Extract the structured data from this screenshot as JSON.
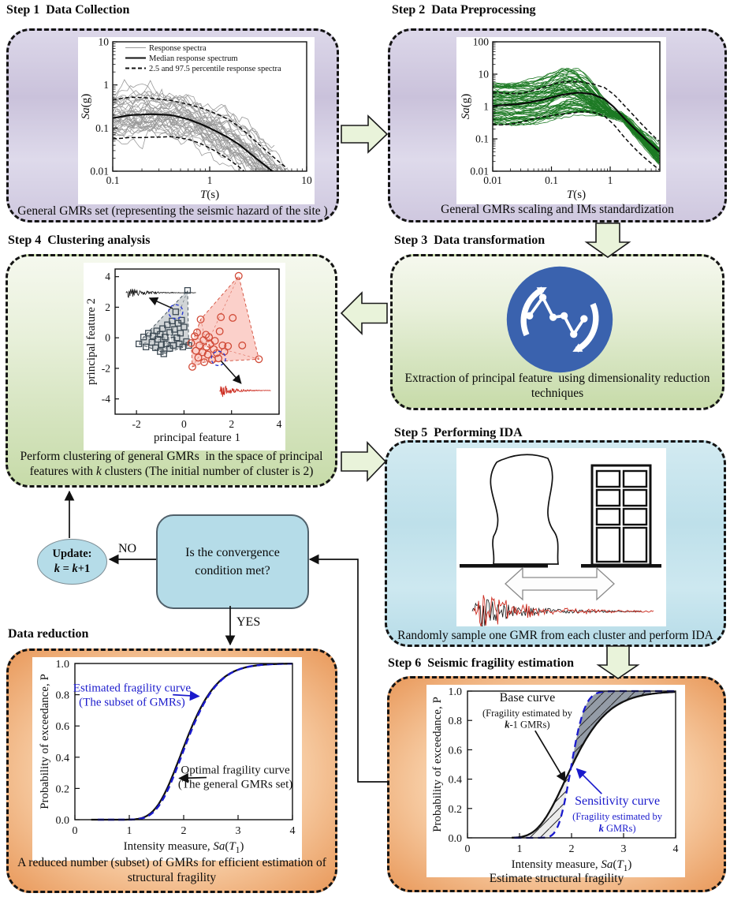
{
  "steps": {
    "s1": {
      "title": "Step 1  Data Collection",
      "caption": "General GMRs set (representing the seismic hazard of the site )"
    },
    "s2": {
      "title": "Step 2  Data Preprocessing",
      "caption": "General GMRs scaling and IMs standardization"
    },
    "s3": {
      "title": "Step 3  Data transformation",
      "caption_line1": "Extraction of principal feature  using dimensionality reduction",
      "caption_line2": "techniques"
    },
    "s4": {
      "title": "Step 4  Clustering analysis",
      "caption_line1": "Perform clustering of general GMRs  in the space of principal",
      "caption_line2_pre": "features with ",
      "caption_k": "k",
      "caption_line2_post": " clusters (The initial number of cluster is 2)"
    },
    "s5": {
      "title": "Step 5  Performing IDA",
      "caption": "Randomly sample one GMR from each cluster and perform IDA"
    },
    "s6": {
      "title": "Step 6  Seismic fragility estimation",
      "caption": "Estimate structural fragility"
    },
    "dr": {
      "title": "Data reduction",
      "caption_line1": "A reduced number (subset) of GMRs for efficient estimation of",
      "caption_line2": "structural fragility"
    }
  },
  "flow": {
    "decision_line1": "Is the convergence",
    "decision_line2": "condition met?",
    "no_label": "NO",
    "yes_label": "YES",
    "update_title": "Update:",
    "update_k": "k",
    "update_eq": " = ",
    "update_plus": "+1"
  },
  "colors": {
    "arrow_fill": "#e9f3da",
    "box_fill": "#b5dce8",
    "icon_blue": "#3a62ae",
    "spectra_gray": "#9a9a9a",
    "spectra_green": "#1d7a24",
    "fragility_blue": "#1a1acc",
    "cluster_gray": "#3d4a54",
    "cluster_red": "#d14b38"
  },
  "chart_data": [
    {
      "id": "chart-step1",
      "type": "spectra",
      "x_range": [
        0.1,
        10
      ],
      "y_range": [
        0.01,
        10
      ],
      "x_ticks": [
        {
          "v": 0.1,
          "l": "0.1"
        },
        {
          "v": 1,
          "l": "1"
        },
        {
          "v": 10,
          "l": "10"
        }
      ],
      "y_ticks": [
        {
          "v": 0.01,
          "l": "0.01"
        },
        {
          "v": 0.1,
          "l": "0.1"
        },
        {
          "v": 1,
          "l": "1"
        },
        {
          "v": 10,
          "l": "10"
        }
      ],
      "xlabel": [
        {
          "t": "T",
          "i": 1
        },
        {
          "t": "(s)"
        }
      ],
      "ylabel": [
        {
          "t": "Sa",
          "i": 1
        },
        {
          "t": "(g)"
        }
      ],
      "legend": [
        {
          "label": "Response spectra",
          "color": "#9a9a9a",
          "w": 1
        },
        {
          "label": "Median response spectrum",
          "color": "#111111",
          "w": 2
        },
        {
          "label": "2.5 and 97.5 percentile response spectra",
          "color": "#111111",
          "w": 2,
          "dash": "5,3"
        }
      ],
      "median": [
        [
          0.1,
          0.17
        ],
        [
          0.15,
          0.2
        ],
        [
          0.25,
          0.21
        ],
        [
          0.4,
          0.2
        ],
        [
          0.6,
          0.16
        ],
        [
          0.8,
          0.125
        ],
        [
          1,
          0.1
        ],
        [
          1.5,
          0.063
        ],
        [
          2,
          0.042
        ],
        [
          3,
          0.02
        ],
        [
          4,
          0.012
        ],
        [
          5,
          0.008
        ],
        [
          6.5,
          0.005
        ]
      ],
      "upper_mult": 2.4,
      "lower_mult": 0.32,
      "n_traces": 38,
      "trace_color": "#9a9a9a",
      "seed": 11
    },
    {
      "id": "chart-step2",
      "type": "spectra2",
      "x_range": [
        0.01,
        7
      ],
      "y_range": [
        0.01,
        100
      ],
      "x_ticks": [
        {
          "v": 0.01,
          "l": "0.01"
        },
        {
          "v": 0.1,
          "l": "0.1"
        },
        {
          "v": 1,
          "l": "1"
        }
      ],
      "y_ticks": [
        {
          "v": 0.01,
          "l": "0.01"
        },
        {
          "v": 0.1,
          "l": "0.1"
        },
        {
          "v": 1,
          "l": "1"
        },
        {
          "v": 10,
          "l": "10"
        },
        {
          "v": 100,
          "l": "100"
        }
      ],
      "xlabel": [
        {
          "t": "T",
          "i": 1
        },
        {
          "t": "(s)"
        }
      ],
      "ylabel": [
        {
          "t": "Sa",
          "i": 1
        },
        {
          "t": "(g)"
        }
      ],
      "median": [
        [
          0.01,
          1.05
        ],
        [
          0.03,
          1.2
        ],
        [
          0.07,
          1.6
        ],
        [
          0.15,
          2.3
        ],
        [
          0.3,
          2.7
        ],
        [
          0.5,
          2.4
        ],
        [
          0.8,
          1.7
        ],
        [
          1.2,
          0.9
        ],
        [
          1.6,
          0.5
        ],
        [
          2,
          0.33
        ],
        [
          3,
          0.16
        ],
        [
          4.5,
          0.08
        ],
        [
          6.8,
          0.04
        ]
      ],
      "upper_mult": 2.3,
      "lower_mult": 0.27,
      "n_traces": 70,
      "trace_color": "#1d7a24",
      "seed": 5
    },
    {
      "id": "chart-step4",
      "type": "scatter",
      "x_range": [
        -2.9,
        4
      ],
      "y_range": [
        -5,
        4.5
      ],
      "x_ticks": [
        {
          "v": -2,
          "l": "-2"
        },
        {
          "v": 0,
          "l": "0"
        },
        {
          "v": 2,
          "l": "2"
        },
        {
          "v": 4,
          "l": "4"
        }
      ],
      "y_ticks": [
        {
          "v": -4,
          "l": "-4"
        },
        {
          "v": -2,
          "l": "-2"
        },
        {
          "v": 0,
          "l": "0"
        },
        {
          "v": 2,
          "l": "2"
        },
        {
          "v": 4,
          "l": "4"
        }
      ],
      "xlabel": [
        {
          "t": "principal feature 1"
        }
      ],
      "ylabel": [
        {
          "t": "principal feature 2"
        }
      ],
      "clusters": [
        {
          "name": "cluster-1",
          "marker": "square",
          "stroke": "#3d4a54",
          "fill": "rgba(145,155,160,0.42)",
          "label": "1",
          "centroid": [
            -0.6,
            0.0
          ],
          "hull": [
            [
              -1.9,
              -0.4
            ],
            [
              -1.0,
              -0.9
            ],
            [
              -0.85,
              -1.05
            ],
            [
              0.2,
              -0.5
            ],
            [
              0.15,
              3.1
            ],
            [
              -1.7,
              0.05
            ]
          ],
          "points": [
            [
              -1.9,
              -0.4
            ],
            [
              -1.7,
              0.05
            ],
            [
              -1.6,
              -0.6
            ],
            [
              -1.5,
              0.3
            ],
            [
              -1.35,
              -0.3
            ],
            [
              -1.3,
              0.12
            ],
            [
              -1.2,
              -0.65
            ],
            [
              -1.15,
              0.45
            ],
            [
              -1.1,
              -0.1
            ],
            [
              -1.0,
              -0.9
            ],
            [
              -1.0,
              0.22
            ],
            [
              -0.95,
              -0.45
            ],
            [
              -0.9,
              0.6
            ],
            [
              -0.85,
              -1.05
            ],
            [
              -0.8,
              0.05
            ],
            [
              -0.75,
              -0.4
            ],
            [
              -0.7,
              0.85
            ],
            [
              -0.6,
              -0.7
            ],
            [
              -0.6,
              0.35
            ],
            [
              -0.5,
              -0.15
            ],
            [
              -0.5,
              1.1
            ],
            [
              -0.45,
              -0.5
            ],
            [
              -0.4,
              0.55
            ],
            [
              -0.35,
              1.7
            ],
            [
              -0.3,
              0.0
            ],
            [
              -0.25,
              0.95
            ],
            [
              -0.2,
              -0.4
            ],
            [
              -0.15,
              0.3
            ],
            [
              -0.1,
              1.15
            ],
            [
              -0.05,
              -0.6
            ],
            [
              0.0,
              0.7
            ],
            [
              0.1,
              -0.25
            ],
            [
              0.15,
              3.1
            ],
            [
              0.2,
              -0.5
            ]
          ]
        },
        {
          "name": "cluster-2",
          "marker": "circle",
          "stroke": "#d14b38",
          "fill": "rgba(247,150,138,0.45)",
          "label": "2",
          "centroid": [
            0.95,
            -0.45
          ],
          "hull": [
            [
              0.35,
              -1.9
            ],
            [
              0.85,
              -1.6
            ],
            [
              3.15,
              -1.4
            ],
            [
              2.3,
              4.05
            ],
            [
              0.7,
              1.2
            ],
            [
              0.45,
              0.1
            ],
            [
              0.3,
              -0.35
            ]
          ],
          "points": [
            [
              0.3,
              -0.35
            ],
            [
              0.35,
              -1.9
            ],
            [
              0.45,
              0.1
            ],
            [
              0.5,
              -0.85
            ],
            [
              0.55,
              0.35
            ],
            [
              0.6,
              -1.3
            ],
            [
              0.65,
              -0.5
            ],
            [
              0.7,
              1.2
            ],
            [
              0.78,
              -0.95
            ],
            [
              0.82,
              -0.15
            ],
            [
              0.85,
              -1.6
            ],
            [
              0.92,
              0.2
            ],
            [
              0.95,
              -0.6
            ],
            [
              1.0,
              -1.1
            ],
            [
              1.05,
              0.05
            ],
            [
              1.1,
              -0.42
            ],
            [
              1.18,
              -1.45
            ],
            [
              1.25,
              -0.75
            ],
            [
              1.3,
              -0.2
            ],
            [
              1.38,
              -1.0
            ],
            [
              1.45,
              -1.35
            ],
            [
              1.5,
              0.42
            ],
            [
              1.55,
              1.35
            ],
            [
              1.62,
              -0.5
            ],
            [
              1.7,
              -0.9
            ],
            [
              1.85,
              -0.55
            ],
            [
              2.05,
              1.3
            ],
            [
              2.3,
              4.05
            ],
            [
              2.45,
              -0.5
            ],
            [
              3.15,
              -1.4
            ]
          ]
        }
      ],
      "waveforms": [
        {
          "x": -2.45,
          "y": 2.95,
          "len": 2.95,
          "amp": 0.5,
          "color": "#111111",
          "seed": 21
        },
        {
          "x": 1.5,
          "y": -3.45,
          "len": 2.15,
          "amp": 0.6,
          "color": "#cc2a1e",
          "seed": 33
        }
      ],
      "highlights": [
        {
          "x": -0.35,
          "y": 1.7
        },
        {
          "x": 1.45,
          "y": -1.35
        }
      ],
      "arrows": [
        {
          "x1": -0.48,
          "y1": 1.92,
          "x2": -1.45,
          "y2": 2.6
        },
        {
          "x1": 1.56,
          "y1": -1.52,
          "x2": 2.4,
          "y2": -2.98
        }
      ]
    },
    {
      "id": "chart-dr",
      "type": "fragility",
      "x_range": [
        0,
        4
      ],
      "y_range": [
        0,
        1
      ],
      "x_ticks": [
        {
          "v": 0,
          "l": "0"
        },
        {
          "v": 1,
          "l": "1"
        },
        {
          "v": 2,
          "l": "2"
        },
        {
          "v": 3,
          "l": "3"
        },
        {
          "v": 4,
          "l": "4"
        }
      ],
      "y_ticks": [
        {
          "v": 0,
          "l": "0.0"
        },
        {
          "v": 0.2,
          "l": "0.2"
        },
        {
          "v": 0.4,
          "l": "0.4"
        },
        {
          "v": 0.6,
          "l": "0.6"
        },
        {
          "v": 0.8,
          "l": "0.8"
        },
        {
          "v": 1,
          "l": "1.0"
        }
      ],
      "xlabel": [
        {
          "t": "Intensity measure, "
        },
        {
          "t": "Sa",
          "i": 1
        },
        {
          "t": "("
        },
        {
          "t": "T",
          "i": 1
        },
        {
          "t": "1",
          "sub": 1
        },
        {
          "t": ")"
        }
      ],
      "ylabel": [
        {
          "t": "Probability of exceedance, P"
        }
      ],
      "curves": [
        {
          "name": "Optimal fragility curve (The general GMRs set)",
          "median": 2.04,
          "beta": 0.22,
          "color": "#111111",
          "width": 2.3,
          "x_start": 0.3
        },
        {
          "name": "Estimated fragility curve (The subset of GMRs)",
          "median": 2.06,
          "beta": 0.215,
          "color": "#1a1acc",
          "width": 2.5,
          "dash": "8,5",
          "x_start": 0.42
        }
      ],
      "annotations": [
        {
          "color": "#1a1acc",
          "x": 1.05,
          "y": 0.82,
          "lines": [
            {
              "size": 15,
              "parts": [
                {
                  "t": "Estimated fragility curve"
                }
              ]
            },
            {
              "size": 15,
              "parts": [
                {
                  "t": "(The subset of GMRs)"
                }
              ]
            }
          ],
          "arrow": {
            "x1": 1.8,
            "y1": 0.8,
            "x2": 2.28,
            "y2": 0.79
          }
        },
        {
          "color": "#111111",
          "x": 2.95,
          "y": 0.295,
          "lines": [
            {
              "size": 15,
              "parts": [
                {
                  "t": "Optimal fragility curve"
                }
              ]
            },
            {
              "size": 15,
              "parts": [
                {
                  "t": "(The general GMRs set)"
                }
              ]
            }
          ],
          "arrow": {
            "x1": 2.42,
            "y1": 0.27,
            "x2": 1.92,
            "y2": 0.265
          }
        }
      ]
    },
    {
      "id": "chart-step6",
      "type": "fragility",
      "x_range": [
        0,
        4
      ],
      "y_range": [
        0,
        1
      ],
      "x_ticks": [
        {
          "v": 0,
          "l": "0"
        },
        {
          "v": 1,
          "l": "1"
        },
        {
          "v": 2,
          "l": "2"
        },
        {
          "v": 3,
          "l": "3"
        },
        {
          "v": 4,
          "l": "4"
        }
      ],
      "y_ticks": [
        {
          "v": 0,
          "l": "0.0"
        },
        {
          "v": 0.2,
          "l": "0.2"
        },
        {
          "v": 0.4,
          "l": "0.4"
        },
        {
          "v": 0.6,
          "l": "0.6"
        },
        {
          "v": 0.8,
          "l": "0.8"
        },
        {
          "v": 1,
          "l": "1.0"
        }
      ],
      "xlabel": [
        {
          "t": "Intensity measure, "
        },
        {
          "t": "Sa",
          "i": 1
        },
        {
          "t": "("
        },
        {
          "t": "T",
          "i": 1
        },
        {
          "t": "1",
          "sub": 1
        },
        {
          "t": ")"
        }
      ],
      "ylabel": [
        {
          "t": "Probability of exceedance, P"
        }
      ],
      "band": {
        "hatch": true,
        "gray_above": true
      },
      "curves": [
        {
          "name": "Base curve (Fragility estimated by k-1 GMRs)",
          "median": 2.02,
          "beta": 0.27,
          "color": "#111111",
          "width": 2.3,
          "x_start": 0.85
        },
        {
          "name": "Sensitivity curve (Fragility estimated by k GMRs)",
          "median": 2.0,
          "beta": 0.1,
          "color": "#1a1acc",
          "width": 2.3,
          "dash": "9,6",
          "x_start": 0.9
        }
      ],
      "annotations": [
        {
          "color": "#111111",
          "x": 1.15,
          "y": 0.93,
          "lines": [
            {
              "size": 16,
              "parts": [
                {
                  "t": "Base curve"
                }
              ]
            },
            {
              "size": 12.5,
              "parts": [
                {
                  "t": "(Fragility estimated by"
                }
              ]
            },
            {
              "size": 12.5,
              "parts": [
                {
                  "t": "k",
                  "i": 1,
                  "b": 1
                },
                {
                  "t": "-1 GMRs)"
                }
              ]
            }
          ],
          "arrow": {
            "x1": 1.3,
            "y1": 0.73,
            "x2": 1.88,
            "y2": 0.385
          }
        },
        {
          "color": "#1a1acc",
          "x": 2.88,
          "y": 0.225,
          "lines": [
            {
              "size": 16,
              "parts": [
                {
                  "t": "Sensitivity curve"
                }
              ]
            },
            {
              "size": 12.5,
              "parts": [
                {
                  "t": "(Fragility estimated by"
                }
              ]
            },
            {
              "size": 12.5,
              "parts": [
                {
                  "t": "k",
                  "i": 1,
                  "b": 1
                },
                {
                  "t": " GMRs)"
                }
              ]
            }
          ],
          "arrow": {
            "x1": 2.58,
            "y1": 0.3,
            "x2": 2.1,
            "y2": 0.47
          }
        }
      ]
    }
  ]
}
